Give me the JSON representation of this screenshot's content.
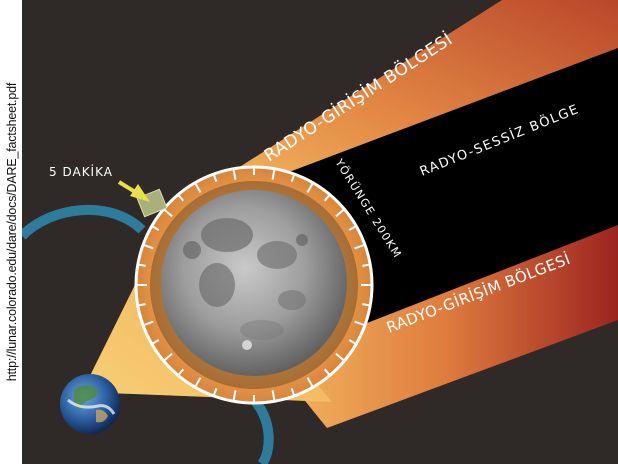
{
  "source_url": "http://lunar.colorado.edu/dare/docs/DARE_factsheet.pdf",
  "labels": {
    "interference_upper": "RADYO-GİRİŞİM BÖLGESİ",
    "interference_lower": "RADYO-GİRİŞİM BÖLGESİ",
    "quiet_zone": "RADYO-SESSİZ BÖLGE",
    "orbit": "YÖRÜNGE 200KM",
    "minutes": "5 DAKİKA"
  },
  "colors": {
    "background": "#2f2a27",
    "beam_light": "#f2b25b",
    "beam_dark": "#c24a2a",
    "quiet_zone": "#000000",
    "orbit_ring": "#ffffff",
    "earth_track": "#2e89b0",
    "arrow": "#e8e24a",
    "spacecraft": "#a9b07a"
  },
  "icons": [
    "earth-icon",
    "moon-icon",
    "spacecraft-icon",
    "arrow-icon"
  ]
}
